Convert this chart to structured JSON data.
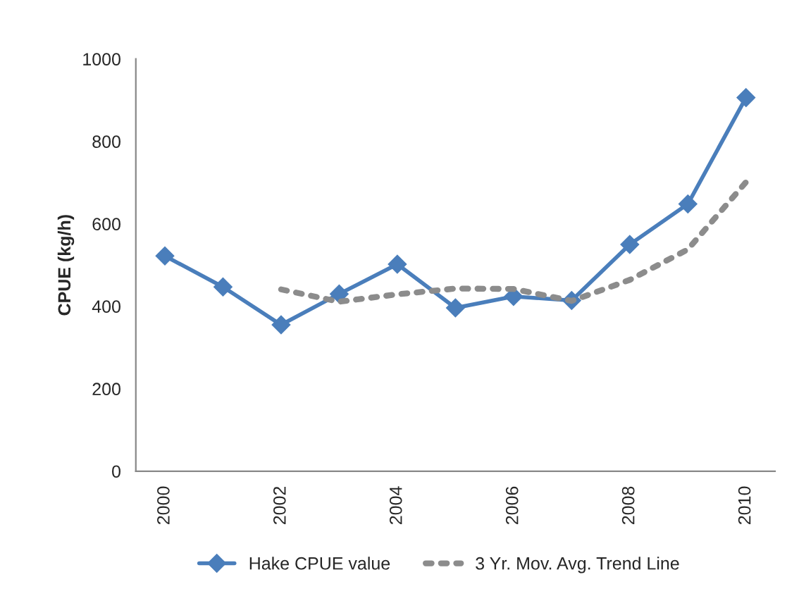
{
  "chart_data": {
    "type": "line",
    "ylabel": "CPUE (kg/h)",
    "categories": [
      "2000",
      null,
      "2002",
      null,
      "2004",
      null,
      "2006",
      null,
      "2008",
      null,
      "2010"
    ],
    "series": [
      {
        "name": "Hake CPUE value",
        "color": "#4a7ebb",
        "marker": "diamond",
        "line_style": "solid",
        "values": [
          522,
          447,
          355,
          430,
          502,
          396,
          424,
          414,
          550,
          648,
          906
        ]
      },
      {
        "name": "3 Yr. Mov. Avg. Trend Line",
        "color": "#8c8c8c",
        "marker": "none",
        "line_style": "dotted",
        "values": [
          null,
          null,
          441,
          411,
          429,
          443,
          442,
          413,
          464,
          538,
          701
        ]
      }
    ],
    "ylim": [
      0,
      1000
    ],
    "yticks": [
      0,
      200,
      400,
      600,
      800,
      1000
    ],
    "grid": false,
    "legend": "bottom"
  }
}
